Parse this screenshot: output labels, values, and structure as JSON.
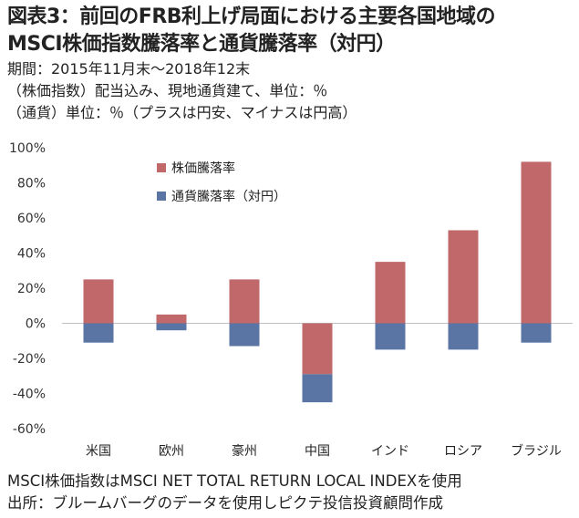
{
  "header": {
    "title_line1": "図表3：前回のFRB利上げ局面における主要各国地域の",
    "title_line2": "MSCI株価指数騰落率と通貨騰落率（対円）",
    "period": "期間：2015年11月末～2018年12末",
    "note1": "（株価指数）配当込み、現地通貨建て、単位：％",
    "note2": "（通貨）単位：％（プラスは円安、マイナスは円高）"
  },
  "footer": {
    "line1": "MSCI株価指数はMSCI NET TOTAL RETURN LOCAL INDEXを使用",
    "line2": "出所：ブルームバーグのデータを使用しピクテ投信投資顧問作成"
  },
  "colors": {
    "stock": "#C0686A",
    "currency": "#5A74A4",
    "axis": "#bfbfbf",
    "grid": "#d9d9d9"
  },
  "chart_data": {
    "type": "bar",
    "stacked": true,
    "categories": [
      "米国",
      "欧州",
      "豪州",
      "中国",
      "インド",
      "ロシア",
      "ブラジル"
    ],
    "series": [
      {
        "name": "株価騰落率",
        "values": [
          25,
          5,
          25,
          -29,
          35,
          53,
          92
        ]
      },
      {
        "name": "通貨騰落率（対円）",
        "values": [
          -11,
          -4,
          -13,
          -16,
          -15,
          -15,
          -11
        ]
      }
    ],
    "ylim": [
      -60,
      100
    ],
    "yticks": [
      100,
      80,
      60,
      40,
      20,
      0,
      -20,
      -40,
      -60
    ],
    "ytick_labels": [
      "100%",
      "80%",
      "60%",
      "40%",
      "20%",
      "0%",
      "-20%",
      "-40%",
      "-60%"
    ],
    "legend_position": "top-left",
    "grid": false
  }
}
